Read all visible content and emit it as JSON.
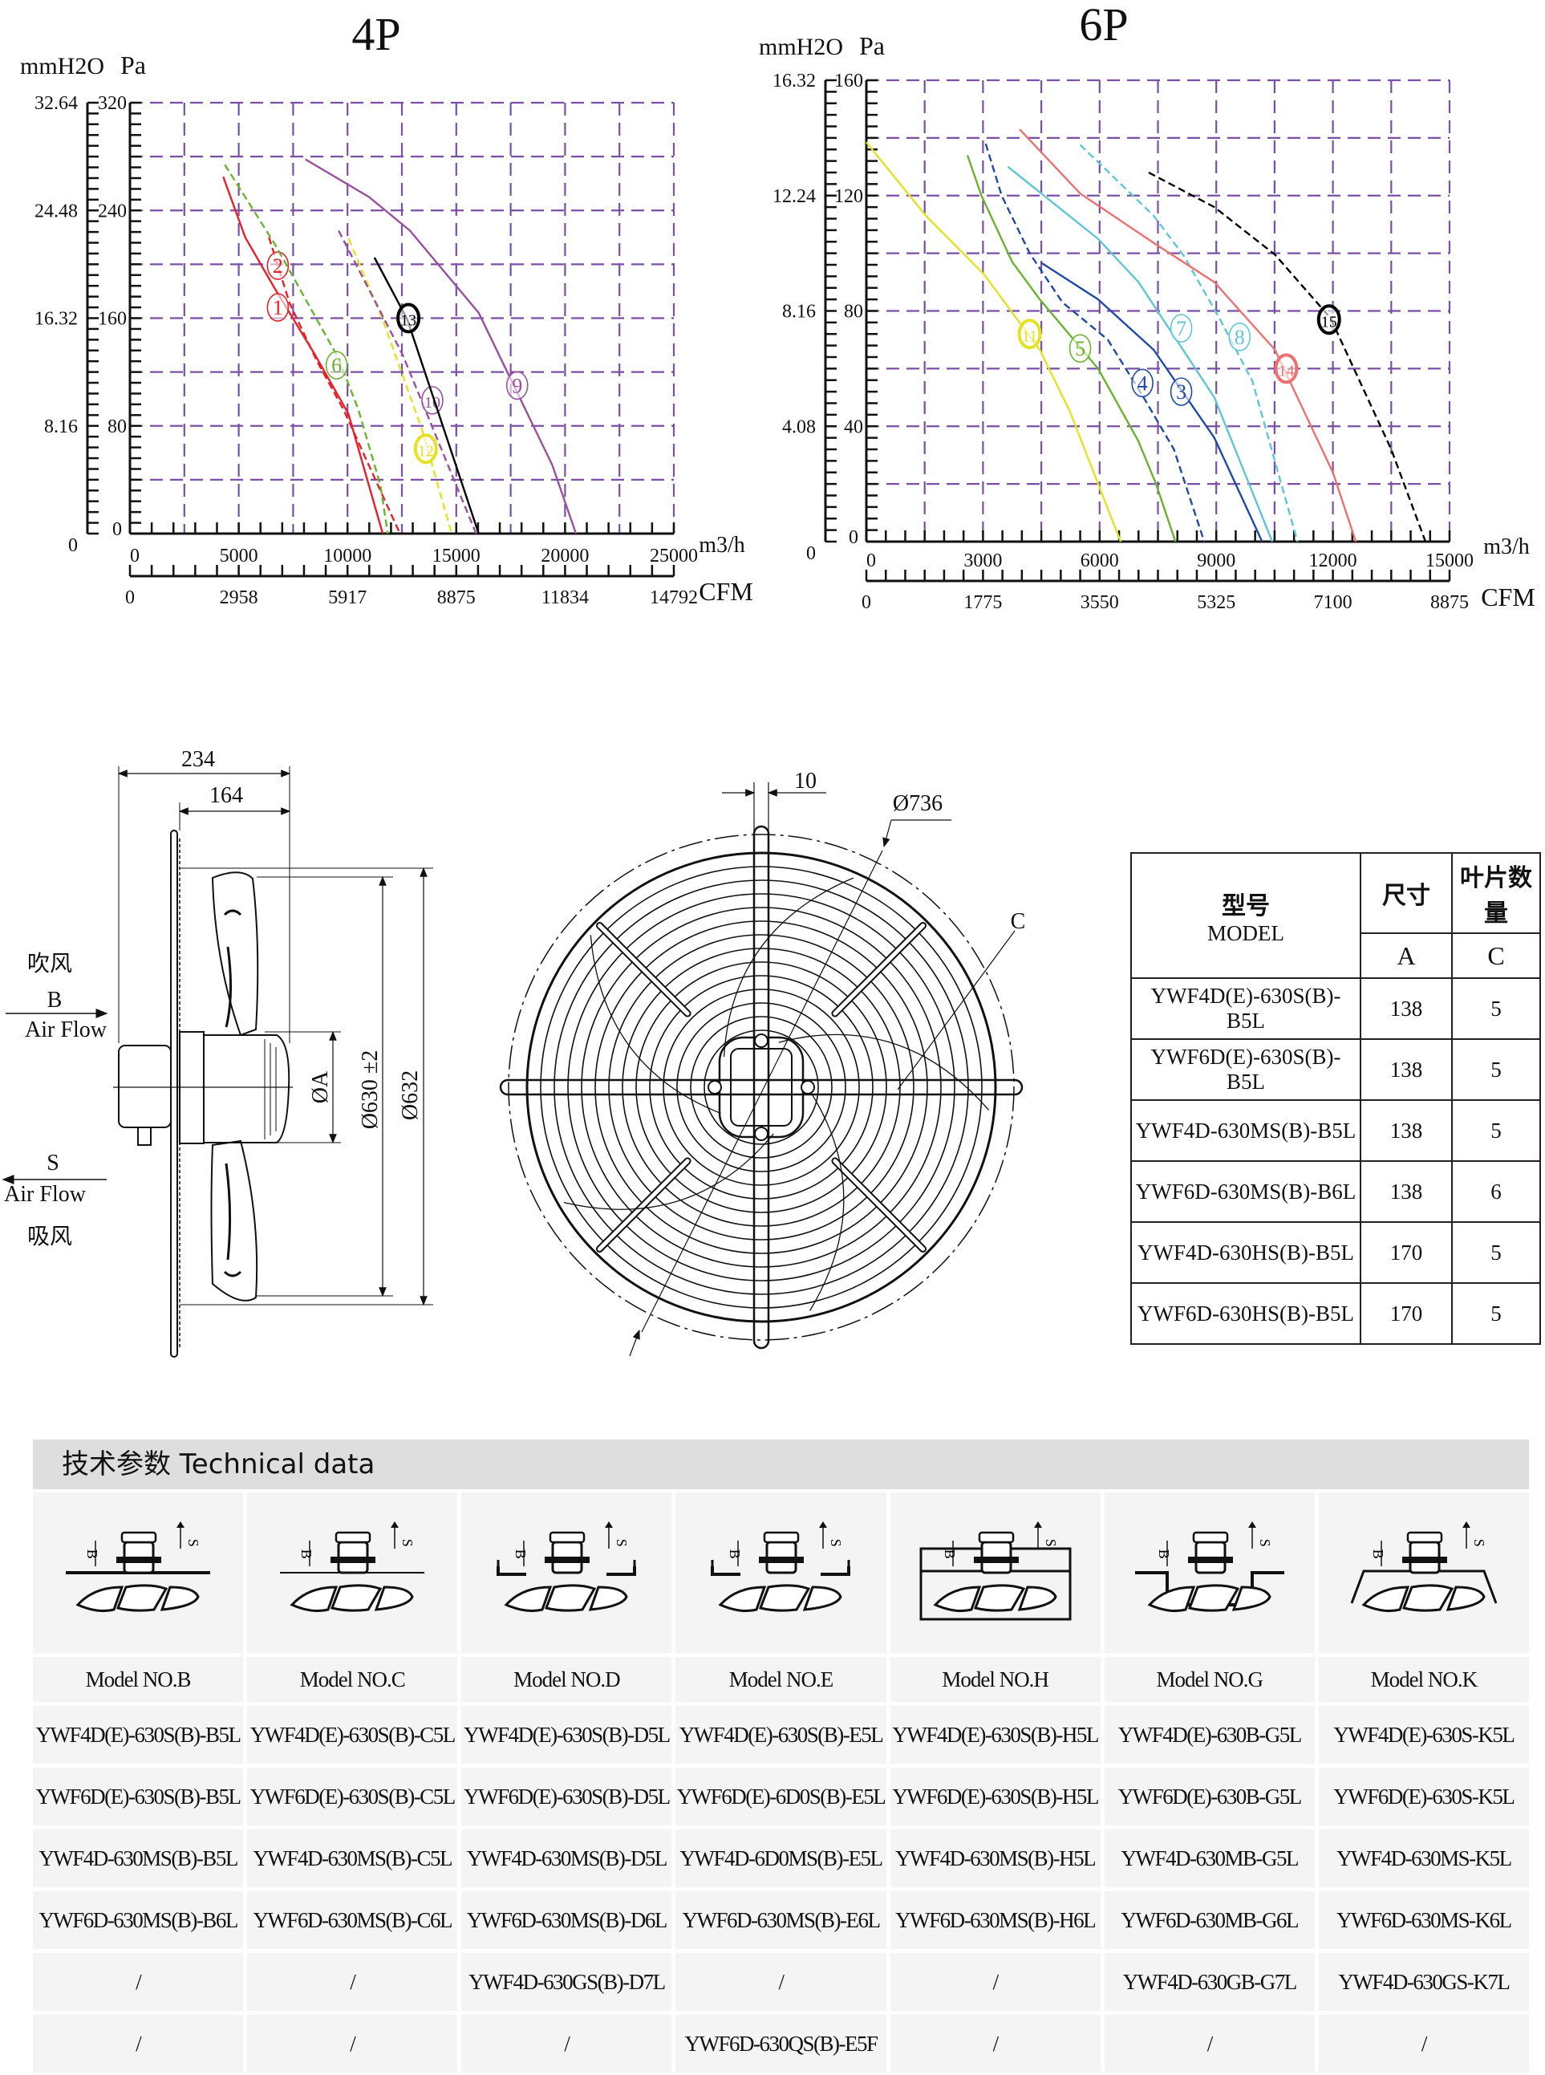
{
  "chart_data": [
    {
      "type": "line",
      "title": "4P",
      "ylabel_left": "mmH2O",
      "ylabel_right": "Pa",
      "xlabel": "m3/h",
      "x2label": "CFM",
      "xlim": [
        0,
        25000
      ],
      "ylim": [
        0,
        320
      ],
      "x_ticks": [
        "0",
        "5000",
        "10000",
        "15000",
        "20000",
        "25000"
      ],
      "y_ticks_pa": [
        "0",
        "80",
        "160",
        "240",
        "320"
      ],
      "y_ticks_mm": [
        "0",
        "8.16",
        "16.32",
        "24.48",
        "32.64"
      ],
      "cfm_ticks": [
        "0",
        "2958",
        "5917",
        "8875",
        "11834",
        "14792"
      ],
      "grid": true,
      "grid_color": "#7b4fa8",
      "series": [
        {
          "name": "1",
          "color": "#e8202a",
          "dash": false,
          "points": [
            [
              4290,
              265
            ],
            [
              5300,
              220
            ],
            [
              6660,
              182
            ],
            [
              8500,
              133
            ],
            [
              10040,
              89
            ],
            [
              11620,
              0
            ]
          ],
          "label_at": [
            6800,
            168
          ]
        },
        {
          "name": "2",
          "color": "#e8202a",
          "dash": true,
          "points": [
            [
              6390,
              220
            ],
            [
              7340,
              171
            ],
            [
              8600,
              128
            ],
            [
              9820,
              92
            ],
            [
              12410,
              0
            ]
          ],
          "label_at": [
            6800,
            199
          ]
        },
        {
          "name": "6",
          "color": "#6ab42d",
          "dash": true,
          "points": [
            [
              4360,
              274
            ],
            [
              6660,
              215
            ],
            [
              9590,
              130
            ],
            [
              10500,
              92
            ],
            [
              11510,
              36
            ],
            [
              11850,
              0
            ]
          ],
          "label_at": [
            9500,
            125
          ]
        },
        {
          "name": "12",
          "color": "#e3e324",
          "dash": true,
          "points": [
            [
              10050,
              219
            ],
            [
              11620,
              159
            ],
            [
              13430,
              77
            ],
            [
              14790,
              0
            ]
          ],
          "label_at": [
            13600,
            63
          ],
          "bold_label": true
        },
        {
          "name": "10",
          "color": "#9b4fa0",
          "dash": true,
          "points": [
            [
              9590,
              225
            ],
            [
              12530,
              133
            ],
            [
              15910,
              0
            ]
          ],
          "label_at": [
            13900,
            99
          ]
        },
        {
          "name": "13",
          "color": "#000000",
          "dash": false,
          "points": [
            [
              11240,
              205
            ],
            [
              12750,
              159
            ],
            [
              16030,
              0
            ]
          ],
          "label_at": [
            12800,
            160
          ],
          "bold_label": true
        },
        {
          "name": "9",
          "color": "#9b4fa0",
          "dash": false,
          "points": [
            [
              8060,
              278
            ],
            [
              10990,
              250
            ],
            [
              12870,
              225
            ],
            [
              16030,
              164
            ],
            [
              19410,
              51
            ],
            [
              20500,
              0
            ]
          ],
          "label_at": [
            17800,
            110
          ]
        }
      ]
    },
    {
      "type": "line",
      "title": "6P",
      "ylabel_left": "mmH2O",
      "ylabel_right": "Pa",
      "xlabel": "m3/h",
      "x2label": "CFM",
      "xlim": [
        0,
        15000
      ],
      "ylim": [
        0,
        160
      ],
      "x_ticks": [
        "0",
        "3000",
        "6000",
        "9000",
        "12000",
        "15000"
      ],
      "y_ticks_pa": [
        "0",
        "40",
        "80",
        "120",
        "160"
      ],
      "y_ticks_mm": [
        "0",
        "4.08",
        "8.16",
        "12.24",
        "16.32"
      ],
      "cfm_ticks": [
        "0",
        "1775",
        "3550",
        "5325",
        "7100",
        "8875"
      ],
      "grid": true,
      "grid_color": "#7b4fa8",
      "series": [
        {
          "name": "11",
          "color": "#e3e324",
          "dash": false,
          "points": [
            [
              0,
              138.5
            ],
            [
              1530,
              113
            ],
            [
              3030,
              92.6
            ],
            [
              4460,
              66.5
            ],
            [
              5240,
              45
            ],
            [
              5960,
              20
            ],
            [
              6540,
              0
            ]
          ],
          "label_at": [
            4200,
            72
          ],
          "bold_label": true
        },
        {
          "name": "5",
          "color": "#6ab42d",
          "dash": false,
          "points": [
            [
              2600,
              134
            ],
            [
              2960,
              120
            ],
            [
              3750,
              97
            ],
            [
              4460,
              84
            ],
            [
              5960,
              60
            ],
            [
              6990,
              35
            ],
            [
              7450,
              20
            ],
            [
              7950,
              0
            ]
          ],
          "label_at": [
            5500,
            67
          ]
        },
        {
          "name": "4",
          "color": "#1f4aa8",
          "dash": true,
          "points": [
            [
              3070,
              138
            ],
            [
              3480,
              120
            ],
            [
              4200,
              100
            ],
            [
              5040,
              83
            ],
            [
              6210,
              70
            ],
            [
              7130,
              50
            ],
            [
              7910,
              32
            ],
            [
              8690,
              0
            ]
          ],
          "label_at": [
            7100,
            55
          ]
        },
        {
          "name": "3",
          "color": "#1f4aa8",
          "dash": false,
          "points": [
            [
              4500,
              96.7
            ],
            [
              5960,
              84
            ],
            [
              7390,
              66.5
            ],
            [
              8950,
              36
            ],
            [
              10180,
              0
            ]
          ],
          "label_at": [
            8100,
            52
          ]
        },
        {
          "name": "7",
          "color": "#5ec6d6",
          "dash": false,
          "points": [
            [
              3640,
              130
            ],
            [
              5960,
              105
            ],
            [
              7000,
              90
            ],
            [
              8950,
              50
            ],
            [
              10440,
              0
            ]
          ],
          "label_at": [
            8100,
            74
          ]
        },
        {
          "name": "8",
          "color": "#5ec6d6",
          "dash": true,
          "points": [
            [
              5500,
              137.6
            ],
            [
              7390,
              113
            ],
            [
              8170,
              99
            ],
            [
              9080,
              77.5
            ],
            [
              9930,
              55.6
            ],
            [
              11090,
              0
            ]
          ],
          "label_at": [
            9600,
            71
          ]
        },
        {
          "name": "14",
          "color": "#ee7070",
          "dash": false,
          "points": [
            [
              3940,
              143
            ],
            [
              5500,
              120.7
            ],
            [
              7390,
              103.6
            ],
            [
              8950,
              90
            ],
            [
              10510,
              66.5
            ],
            [
              12000,
              24
            ],
            [
              12590,
              0
            ]
          ],
          "label_at": [
            10800,
            60
          ],
          "bold_label": true
        },
        {
          "name": "15",
          "color": "#000000",
          "dash": true,
          "points": [
            [
              7260,
              128
            ],
            [
              8950,
              116
            ],
            [
              10510,
              99.5
            ],
            [
              11940,
              77.5
            ],
            [
              13500,
              32
            ],
            [
              14380,
              0
            ]
          ],
          "label_at": [
            11900,
            77
          ],
          "bold_label": true
        }
      ]
    }
  ],
  "drawing": {
    "dim_234": "234",
    "dim_164": "164",
    "dim_a": "ØA",
    "dim_630": "Ø630 ±2",
    "dim_632": "Ø632",
    "blow_cn": "吹风",
    "blow_letter": "B",
    "blow_en": "Air Flow",
    "suck_letter": "S",
    "suck_en": "Air Flow",
    "suck_cn": "吸风",
    "dim_10": "10",
    "dim_736": "Ø736",
    "dim_c": "C"
  },
  "spec_table": {
    "header_model_cn": "型号",
    "header_model_en": "MODEL",
    "header_size_cn": "尺寸",
    "header_size_en": "A",
    "header_blades_cn": "叶片数量",
    "header_blades_en": "C",
    "rows": [
      {
        "model": "YWF4D(E)-630S(B)-B5L",
        "a": "138",
        "c": "5"
      },
      {
        "model": "YWF6D(E)-630S(B)-B5L",
        "a": "138",
        "c": "5"
      },
      {
        "model": "YWF4D-630MS(B)-B5L",
        "a": "138",
        "c": "5"
      },
      {
        "model": "YWF6D-630MS(B)-B6L",
        "a": "138",
        "c": "6"
      },
      {
        "model": "YWF4D-630HS(B)-B5L",
        "a": "170",
        "c": "5"
      },
      {
        "model": "YWF6D-630HS(B)-B5L",
        "a": "170",
        "c": "5"
      }
    ]
  },
  "tech": {
    "title": "技术参数 Technical data",
    "icon_b": "B",
    "icon_s": "S",
    "headers": [
      "Model NO.B",
      "Model NO.C",
      "Model NO.D",
      "Model NO.E",
      "Model NO.H",
      "Model NO.G",
      "Model NO.K"
    ],
    "rows": [
      [
        "YWF4D(E)-630S(B)-B5L",
        "YWF4D(E)-630S(B)-C5L",
        "YWF4D(E)-630S(B)-D5L",
        "YWF4D(E)-630S(B)-E5L",
        "YWF4D(E)-630S(B)-H5L",
        "YWF4D(E)-630B-G5L",
        "YWF4D(E)-630S-K5L"
      ],
      [
        "YWF6D(E)-630S(B)-B5L",
        "YWF6D(E)-630S(B)-C5L",
        "YWF6D(E)-630S(B)-D5L",
        "YWF6D(E)-6D0S(B)-E5L",
        "YWF6D(E)-630S(B)-H5L",
        "YWF6D(E)-630B-G5L",
        "YWF6D(E)-630S-K5L"
      ],
      [
        "YWF4D-630MS(B)-B5L",
        "YWF4D-630MS(B)-C5L",
        "YWF4D-630MS(B)-D5L",
        "YWF4D-6D0MS(B)-E5L",
        "YWF4D-630MS(B)-H5L",
        "YWF4D-630MB-G5L",
        "YWF4D-630MS-K5L"
      ],
      [
        "YWF6D-630MS(B)-B6L",
        "YWF6D-630MS(B)-C6L",
        "YWF6D-630MS(B)-D6L",
        "YWF6D-630MS(B)-E6L",
        "YWF6D-630MS(B)-H6L",
        "YWF6D-630MB-G6L",
        "YWF6D-630MS-K6L"
      ],
      [
        "/",
        "/",
        "YWF4D-630GS(B)-D7L",
        "/",
        "/",
        "YWF4D-630GB-G7L",
        "YWF4D-630GS-K7L"
      ],
      [
        "/",
        "/",
        "/",
        "YWF6D-630QS(B)-E5F",
        "/",
        "/",
        "/"
      ]
    ]
  }
}
